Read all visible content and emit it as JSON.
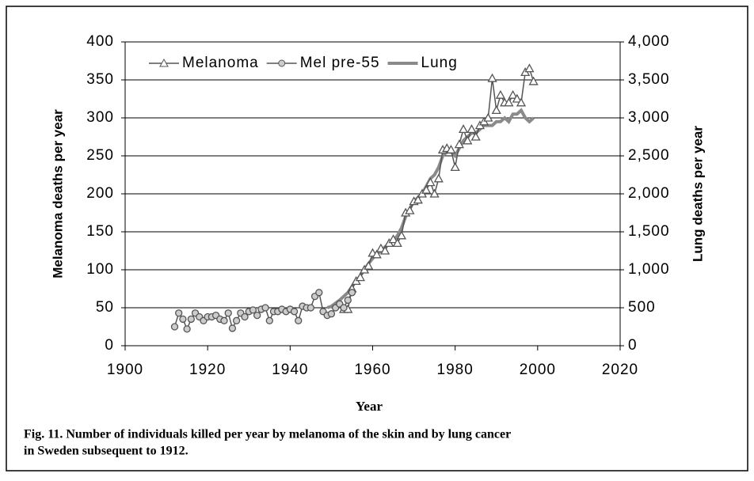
{
  "chart_data": {
    "type": "line",
    "x_label": "Year",
    "y_label": "Melanoma deaths per year",
    "y2_label": "Lung deaths per year",
    "caption": [
      "Fig. 11. Number of individuals killed per year by melanoma of the skin and by lung cancer",
      "in Sweden subsequent to 1912."
    ],
    "xlim": [
      1900,
      2020
    ],
    "xticks": [
      1900,
      1920,
      1940,
      1960,
      1980,
      2000,
      2020
    ],
    "ylim": [
      0,
      400
    ],
    "yticks": [
      0,
      50,
      100,
      150,
      200,
      250,
      300,
      350,
      400
    ],
    "y2lim": [
      0,
      4000
    ],
    "y2ticks": [
      0,
      500,
      {
        "value": 1000,
        "label": "1,000"
      },
      {
        "value": 1500,
        "label": "1,500"
      },
      {
        "value": 2000,
        "label": "2,000"
      },
      {
        "value": 2500,
        "label": "2,500"
      },
      {
        "value": 3000,
        "label": "3,000"
      },
      {
        "value": 3500,
        "label": "3,500"
      },
      {
        "value": 4000,
        "label": "4,000"
      }
    ],
    "grid": true,
    "legend": "top-left",
    "series": [
      {
        "name": "Melanoma",
        "color": "#555555",
        "marker": "triangle",
        "x": [
          1953,
          1954,
          1955,
          1956,
          1957,
          1958,
          1959,
          1960,
          1961,
          1962,
          1963,
          1964,
          1965,
          1966,
          1967,
          1968,
          1969,
          1970,
          1971,
          1972,
          1973,
          1974,
          1975,
          1976,
          1977,
          1978,
          1979,
          1980,
          1981,
          1982,
          1983,
          1984,
          1985,
          1986,
          1987,
          1988,
          1989,
          1990,
          1991,
          1992,
          1993,
          1994,
          1995,
          1996,
          1997,
          1998,
          1999
        ],
        "values": [
          48,
          48,
          75,
          85,
          90,
          100,
          105,
          122,
          120,
          128,
          125,
          135,
          140,
          135,
          145,
          175,
          178,
          190,
          192,
          200,
          205,
          215,
          200,
          220,
          258,
          260,
          258,
          235,
          265,
          285,
          270,
          285,
          275,
          290,
          295,
          300,
          352,
          310,
          330,
          320,
          320,
          330,
          325,
          320,
          360,
          365,
          348
        ]
      },
      {
        "name": "Mel pre-55",
        "color": "#555555",
        "marker": "circle",
        "x": [
          1912,
          1913,
          1914,
          1915,
          1916,
          1917,
          1918,
          1919,
          1920,
          1921,
          1922,
          1923,
          1924,
          1925,
          1926,
          1927,
          1928,
          1929,
          1930,
          1931,
          1932,
          1933,
          1934,
          1935,
          1936,
          1937,
          1938,
          1939,
          1940,
          1941,
          1942,
          1943,
          1944,
          1945,
          1946,
          1947,
          1948,
          1949,
          1950,
          1951,
          1952,
          1953,
          1954,
          1955
        ],
        "values": [
          25,
          43,
          35,
          22,
          35,
          43,
          38,
          33,
          38,
          38,
          40,
          35,
          33,
          43,
          23,
          33,
          43,
          38,
          45,
          47,
          40,
          48,
          50,
          33,
          45,
          45,
          48,
          45,
          48,
          45,
          33,
          52,
          50,
          50,
          65,
          70,
          45,
          40,
          42,
          50,
          55,
          50,
          60,
          70
        ]
      },
      {
        "name": "Lung",
        "color": "#8a8a8a",
        "axis": "y2",
        "x": [
          1949,
          1950,
          1951,
          1952,
          1953,
          1954,
          1955,
          1956,
          1957,
          1958,
          1959,
          1960,
          1961,
          1962,
          1963,
          1964,
          1965,
          1966,
          1967,
          1968,
          1969,
          1970,
          1971,
          1972,
          1973,
          1974,
          1975,
          1976,
          1977,
          1978,
          1979,
          1980,
          1981,
          1982,
          1983,
          1984,
          1985,
          1986,
          1987,
          1988,
          1989,
          1990,
          1991,
          1992,
          1993,
          1994,
          1995,
          1996,
          1997,
          1998,
          1999
        ],
        "values": [
          500,
          520,
          560,
          600,
          650,
          700,
          780,
          850,
          920,
          1000,
          1080,
          1150,
          1200,
          1250,
          1300,
          1350,
          1380,
          1450,
          1550,
          1700,
          1800,
          1900,
          1950,
          2000,
          2100,
          2200,
          2250,
          2350,
          2500,
          2550,
          2550,
          2500,
          2600,
          2700,
          2750,
          2800,
          2800,
          2850,
          2900,
          2900,
          2900,
          2950,
          2950,
          3000,
          2950,
          3050,
          3050,
          3100,
          3000,
          2950,
          3000
        ]
      }
    ]
  }
}
